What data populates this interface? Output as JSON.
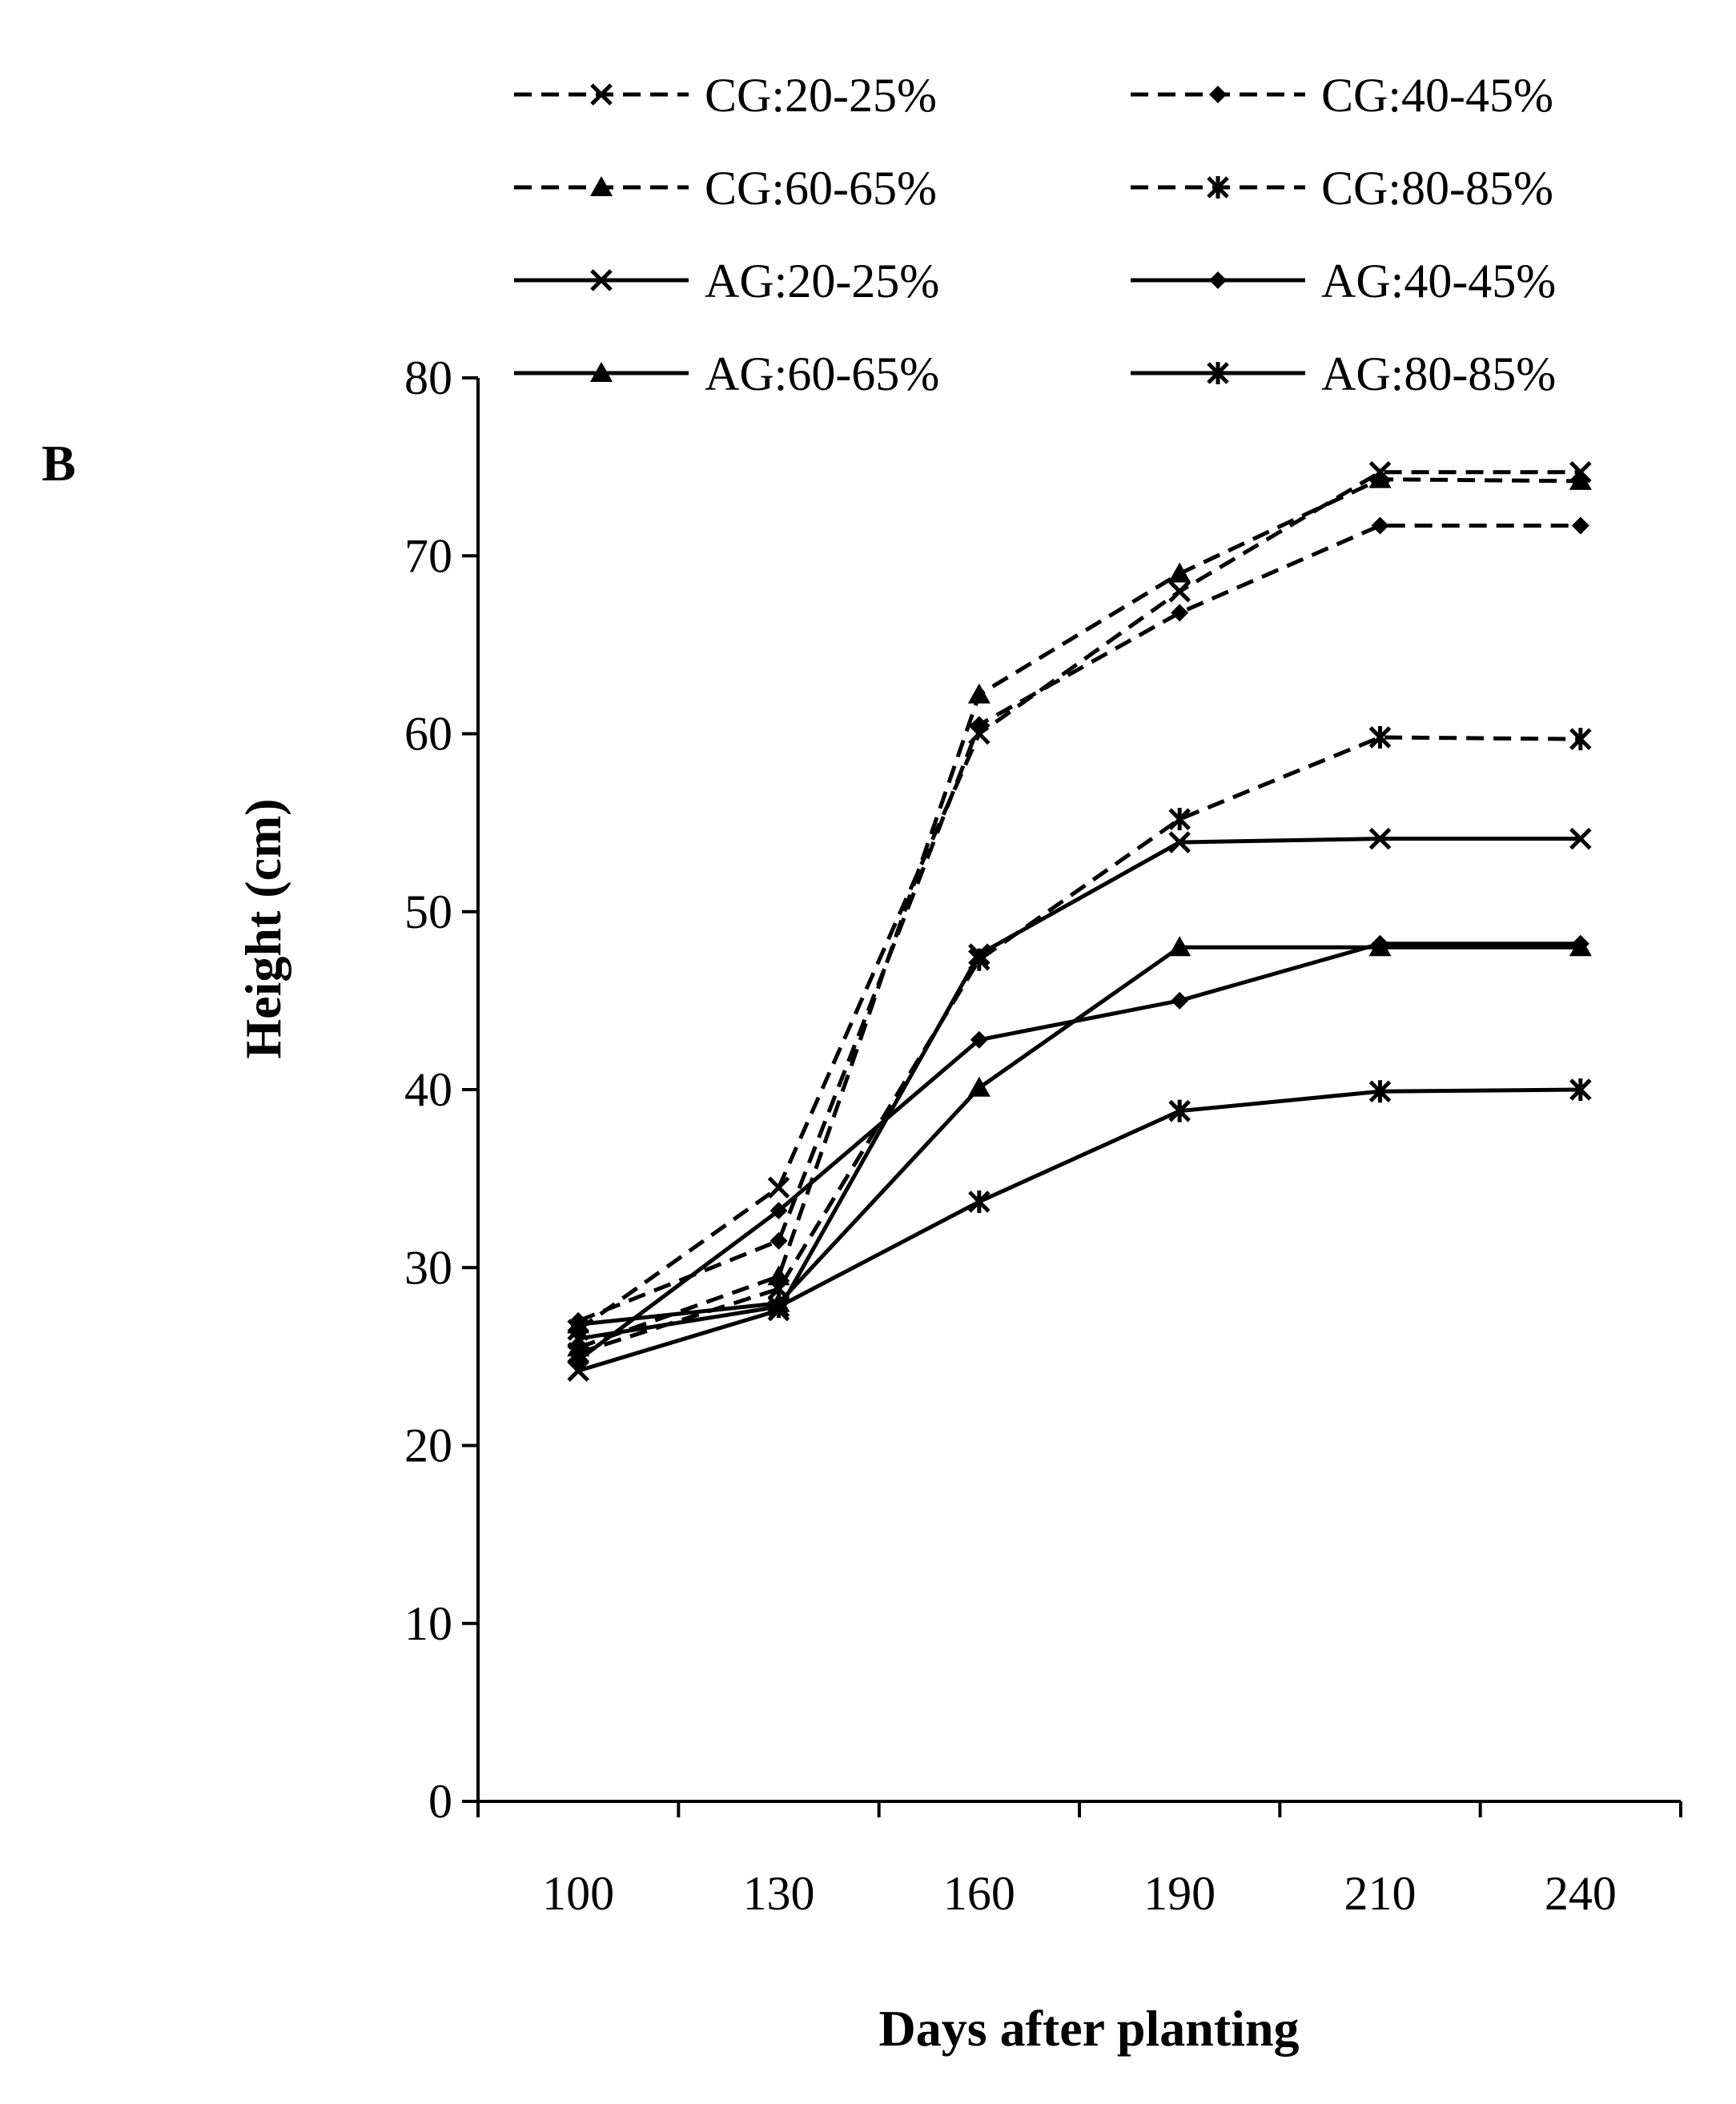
{
  "chart_data": {
    "type": "line",
    "panel_label": "B",
    "title": "",
    "xlabel": "Days after planting",
    "ylabel": "Height (cm)",
    "categories": [
      "100",
      "130",
      "160",
      "190",
      "210",
      "240"
    ],
    "yticks": [
      "0",
      "10",
      "20",
      "30",
      "40",
      "50",
      "60",
      "70",
      "80"
    ],
    "ylim": [
      0,
      80
    ],
    "grid": false,
    "legend_position": "top",
    "series": [
      {
        "name": "CG:20-25%",
        "style": "dashed",
        "marker": "x",
        "values": [
          26.5,
          34.5,
          60.0,
          68.0,
          74.7,
          74.7
        ]
      },
      {
        "name": "CG:40-45%",
        "style": "dashed",
        "marker": "diamond",
        "values": [
          27.0,
          31.5,
          60.5,
          66.8,
          71.7,
          71.7
        ]
      },
      {
        "name": "CG:60-65%",
        "style": "dashed",
        "marker": "triangle",
        "values": [
          25.5,
          29.5,
          62.2,
          69.0,
          74.3,
          74.2
        ]
      },
      {
        "name": "CG:80-85%",
        "style": "dashed",
        "marker": "star",
        "values": [
          25.2,
          28.8,
          47.3,
          55.2,
          59.8,
          59.7
        ]
      },
      {
        "name": "AG:20-25%",
        "style": "solid",
        "marker": "x",
        "values": [
          24.2,
          27.6,
          47.6,
          53.9,
          54.1,
          54.1
        ]
      },
      {
        "name": "AG:40-45%",
        "style": "solid",
        "marker": "diamond",
        "values": [
          24.8,
          33.2,
          42.8,
          45.0,
          48.2,
          48.2
        ]
      },
      {
        "name": "AG:60-65%",
        "style": "solid",
        "marker": "triangle",
        "values": [
          26.8,
          28.0,
          40.1,
          48.0,
          48.0,
          48.0
        ]
      },
      {
        "name": "AG:80-85%",
        "style": "solid",
        "marker": "star",
        "values": [
          26.0,
          27.8,
          33.7,
          38.8,
          39.9,
          40.0
        ]
      }
    ]
  }
}
